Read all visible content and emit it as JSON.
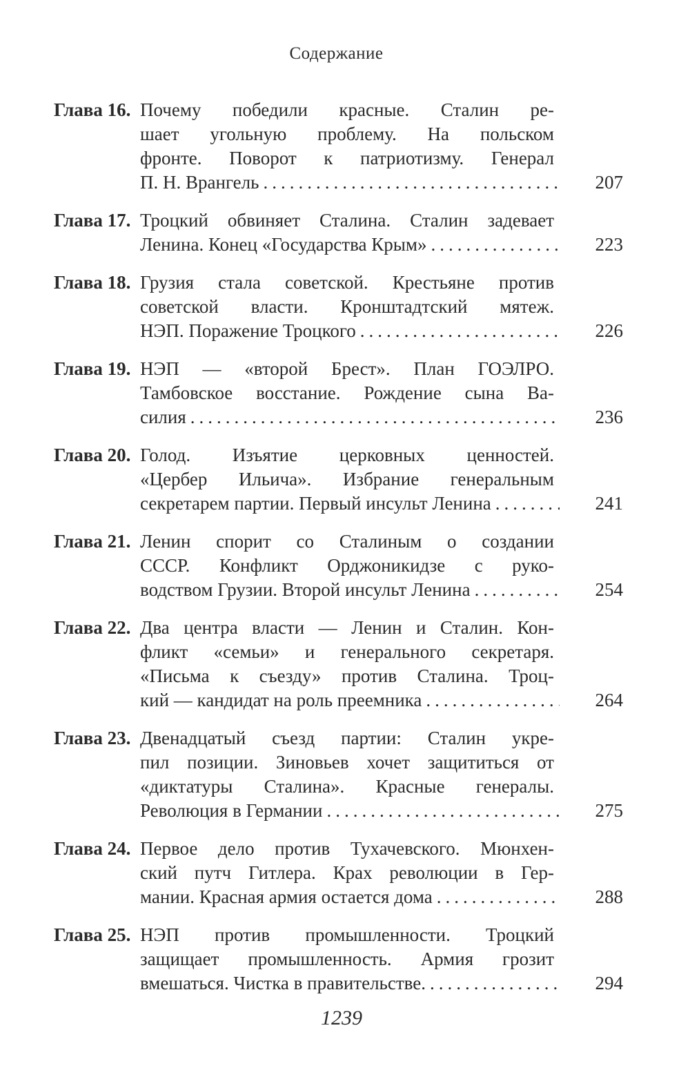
{
  "header": {
    "title": "Содержание"
  },
  "entries": [
    {
      "label": "Глава 16.",
      "lines": [
        "Почему победили красные. Сталин ре-",
        "шает угольную проблему. На польском",
        "фронте. Поворот к патриотизму. Генерал",
        "П. Н. Врангель"
      ],
      "page": "207"
    },
    {
      "label": "Глава 17.",
      "lines": [
        "Троцкий обвиняет Сталина. Сталин задевает",
        "Ленина. Конец «Государства Крым»"
      ],
      "page": "223"
    },
    {
      "label": "Глава 18.",
      "lines": [
        "Грузия стала советской. Крестьяне против",
        "советской власти. Кронштадтский мятеж.",
        "НЭП. Поражение Троцкого"
      ],
      "page": "226"
    },
    {
      "label": "Глава 19.",
      "lines": [
        "НЭП — «второй Брест». План ГОЭЛРО.",
        "Тамбовское восстание. Рождение сына Ва-",
        "силия"
      ],
      "page": "236"
    },
    {
      "label": "Глава 20.",
      "lines": [
        "Голод. Изъятие церковных ценностей.",
        "«Цербер Ильича». Избрание генеральным",
        "секретарем партии. Первый инсульт Ленина"
      ],
      "page": "241"
    },
    {
      "label": "Глава 21.",
      "lines": [
        "Ленин спорит со Сталиным о создании",
        "СССР. Конфликт Орджоникидзе с руко-",
        "водством Грузии. Второй инсульт Ленина"
      ],
      "page": "254"
    },
    {
      "label": "Глава 22.",
      "lines": [
        "Два центра власти — Ленин и Сталин. Кон-",
        "фликт «семьи» и генерального секретаря.",
        "«Письма к съезду» против Сталина. Троц-",
        "кий — кандидат на роль преемника"
      ],
      "page": "264"
    },
    {
      "label": "Глава 23.",
      "lines": [
        "Двенадцатый съезд партии: Сталин укре-",
        "пил позиции. Зиновьев хочет защититься от",
        "«диктатуры Сталина». Красные генералы.",
        "Революция в Германии"
      ],
      "page": "275"
    },
    {
      "label": "Глава 24.",
      "lines": [
        "Первое дело против Тухачевского. Мюнхен-",
        "ский путч Гитлера. Крах революции в Гер-",
        "мании. Красная армия остается дома"
      ],
      "page": "288"
    },
    {
      "label": "Глава 25.",
      "lines": [
        "НЭП против промышленности. Троцкий",
        "защищает промышленность. Армия грозит",
        "вмешаться. Чистка в правительстве."
      ],
      "page": "294"
    }
  ],
  "footer": {
    "page_number": "1239"
  }
}
